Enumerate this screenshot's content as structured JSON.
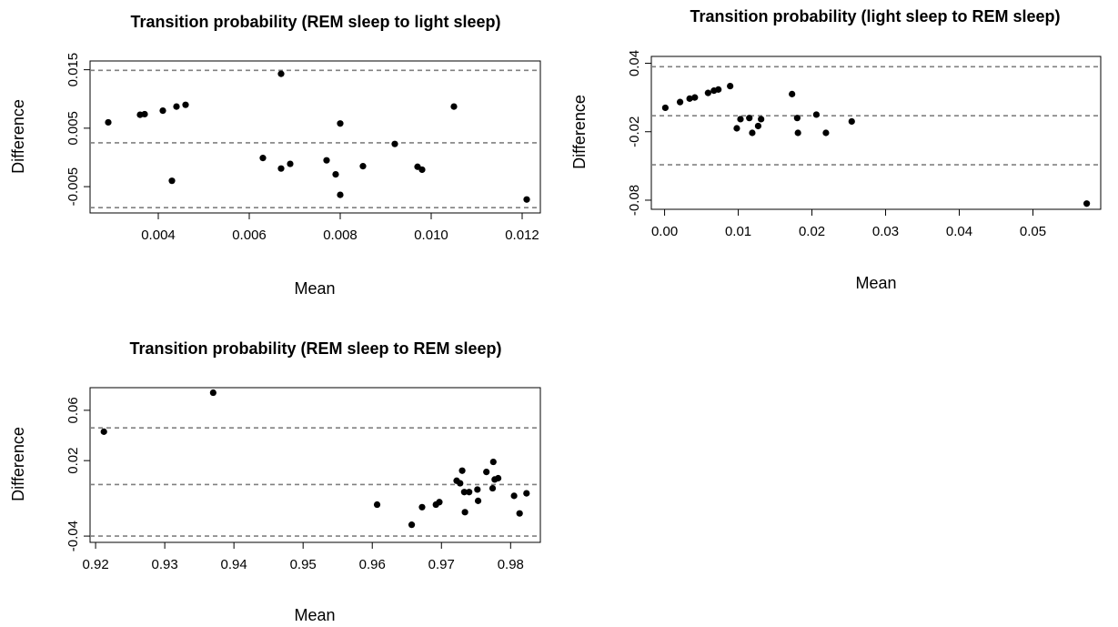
{
  "axis_titles": {
    "x": "Mean",
    "y": "Difference"
  },
  "colors": {
    "points": "#000000",
    "reference_lines": "#808080",
    "axes": "#000000"
  },
  "chart_data": [
    {
      "type": "scatter",
      "title": "Transition probability (REM sleep to light sleep)",
      "xlabel": "Mean",
      "ylabel": "Difference",
      "xlim": [
        0.0025,
        0.0124
      ],
      "ylim": [
        -0.0095,
        0.0165
      ],
      "xticks": [
        0.004,
        0.006,
        0.008,
        0.01,
        0.012
      ],
      "xtick_labels": [
        "0.004",
        "0.006",
        "0.008",
        "0.010",
        "0.012"
      ],
      "yticks": [
        -0.005,
        0.005,
        0.015
      ],
      "ytick_labels": [
        "-0.005",
        "0.005",
        "0.015"
      ],
      "reference_lines": [
        0.0149,
        0.0025,
        -0.0086
      ],
      "grid": false,
      "points": [
        [
          0.0029,
          0.006
        ],
        [
          0.0036,
          0.0073
        ],
        [
          0.0037,
          0.0074
        ],
        [
          0.0041,
          0.008
        ],
        [
          0.0044,
          0.0087
        ],
        [
          0.0046,
          0.009
        ],
        [
          0.0043,
          -0.004
        ],
        [
          0.0063,
          -0.0001
        ],
        [
          0.0067,
          0.0143
        ],
        [
          0.0067,
          -0.0019
        ],
        [
          0.0069,
          -0.0011
        ],
        [
          0.0077,
          -0.0005
        ],
        [
          0.0079,
          -0.0029
        ],
        [
          0.008,
          0.0058
        ],
        [
          0.008,
          -0.0064
        ],
        [
          0.0085,
          -0.0015
        ],
        [
          0.0092,
          0.0023
        ],
        [
          0.0097,
          -0.0016
        ],
        [
          0.0098,
          -0.0021
        ],
        [
          0.0105,
          0.0087
        ],
        [
          0.0121,
          -0.0072
        ]
      ]
    },
    {
      "type": "scatter",
      "title": "Transition probability (light sleep to REM sleep)",
      "xlabel": "Mean",
      "ylabel": "Difference",
      "xlim": [
        -0.0018,
        0.0592
      ],
      "ylim": [
        -0.088,
        0.046
      ],
      "xticks": [
        0.0,
        0.01,
        0.02,
        0.03,
        0.04,
        0.05
      ],
      "xtick_labels": [
        "0.00",
        "0.01",
        "0.02",
        "0.03",
        "0.04",
        "0.05"
      ],
      "yticks": [
        -0.08,
        -0.02,
        0.04
      ],
      "ytick_labels": [
        "-0.08",
        "-0.02",
        "0.04"
      ],
      "reference_lines": [
        0.037,
        -0.006,
        -0.049
      ],
      "grid": false,
      "points": [
        [
          0.0001,
          0.001
        ],
        [
          0.0021,
          0.006
        ],
        [
          0.0034,
          0.009
        ],
        [
          0.0041,
          0.01
        ],
        [
          0.0059,
          0.014
        ],
        [
          0.0067,
          0.016
        ],
        [
          0.0073,
          0.017
        ],
        [
          0.0089,
          0.02
        ],
        [
          0.0098,
          -0.017
        ],
        [
          0.0103,
          -0.009
        ],
        [
          0.0115,
          -0.008
        ],
        [
          0.0119,
          -0.021
        ],
        [
          0.0127,
          -0.015
        ],
        [
          0.0131,
          -0.009
        ],
        [
          0.0173,
          0.013
        ],
        [
          0.018,
          -0.008
        ],
        [
          0.0181,
          -0.021
        ],
        [
          0.0206,
          -0.005
        ],
        [
          0.0219,
          -0.021
        ],
        [
          0.0254,
          -0.011
        ],
        [
          0.0573,
          -0.083
        ]
      ]
    },
    {
      "type": "scatter",
      "title": "Transition probability (REM sleep to REM sleep)",
      "xlabel": "Mean",
      "ylabel": "Difference",
      "xlim": [
        0.9192,
        0.9843
      ],
      "ylim": [
        -0.045,
        0.078
      ],
      "xticks": [
        0.92,
        0.93,
        0.94,
        0.95,
        0.96,
        0.97,
        0.98
      ],
      "xtick_labels": [
        "0.92",
        "0.93",
        "0.94",
        "0.95",
        "0.96",
        "0.97",
        "0.98"
      ],
      "yticks": [
        -0.04,
        0.02,
        0.06
      ],
      "ytick_labels": [
        "-0.04",
        "0.02",
        "0.06"
      ],
      "reference_lines": [
        0.046,
        0.001,
        -0.04
      ],
      "grid": false,
      "points": [
        [
          0.9212,
          0.043
        ],
        [
          0.937,
          0.074
        ],
        [
          0.9607,
          -0.015
        ],
        [
          0.9657,
          -0.031
        ],
        [
          0.9672,
          -0.017
        ],
        [
          0.9692,
          -0.015
        ],
        [
          0.9697,
          -0.013
        ],
        [
          0.9722,
          0.004
        ],
        [
          0.9727,
          0.002
        ],
        [
          0.973,
          0.012
        ],
        [
          0.9733,
          -0.005
        ],
        [
          0.9734,
          -0.021
        ],
        [
          0.974,
          -0.005
        ],
        [
          0.9752,
          -0.003
        ],
        [
          0.9753,
          -0.012
        ],
        [
          0.9765,
          0.011
        ],
        [
          0.9774,
          -0.002
        ],
        [
          0.9775,
          0.019
        ],
        [
          0.9777,
          0.005
        ],
        [
          0.9782,
          0.006
        ],
        [
          0.9805,
          -0.008
        ],
        [
          0.9813,
          -0.022
        ],
        [
          0.9823,
          -0.006
        ]
      ]
    }
  ]
}
